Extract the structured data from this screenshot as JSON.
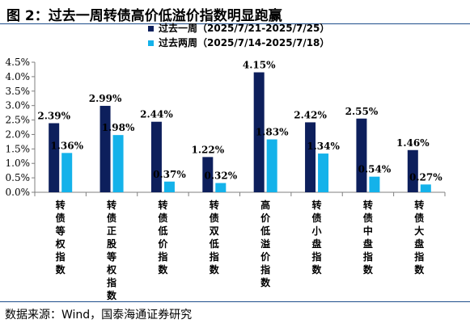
{
  "header": {
    "title": "图 2：过去一周转债高价低溢价指数明显跑赢"
  },
  "footer": {
    "source": "数据来源：Wind，国泰海通证券研究"
  },
  "colors": {
    "series_current": "#0d1f5c",
    "series_previous": "#14b2ea",
    "rule": "#1f4e8c"
  },
  "chart_data": {
    "type": "bar",
    "categories": [
      "转债等权指数",
      "转债正股等权指数",
      "转债低价指数",
      "转债双低指数",
      "高价低溢价指数",
      "转债小盘指数",
      "转债中盘指数",
      "转债大盘指数"
    ],
    "series": [
      {
        "name": "过去一周（2025/7/21-2025/7/25）",
        "values": [
          2.39,
          2.99,
          2.44,
          1.22,
          4.15,
          2.42,
          2.55,
          1.46
        ]
      },
      {
        "name": "过去两周（2025/7/14-2025/7/18）",
        "values": [
          1.36,
          1.98,
          0.37,
          0.32,
          1.83,
          1.34,
          0.54,
          0.27
        ]
      }
    ],
    "data_labels": [
      [
        "2.39%",
        "2.99%",
        "2.44%",
        "1.22%",
        "4.15%",
        "2.42%",
        "2.55%",
        "1.46%"
      ],
      [
        "1.36%",
        "1.98%",
        "0.37%",
        "0.32%",
        "1.83%",
        "1.34%",
        "0.54%",
        "0.27%"
      ]
    ],
    "y_ticks": [
      "0.0%",
      "0.5%",
      "1.0%",
      "1.5%",
      "2.0%",
      "2.5%",
      "3.0%",
      "3.5%",
      "4.0%",
      "4.5%"
    ],
    "ylim": [
      0,
      4.5
    ],
    "xlabel": "",
    "ylabel": "",
    "grid": false,
    "legend_position": "top-center"
  }
}
